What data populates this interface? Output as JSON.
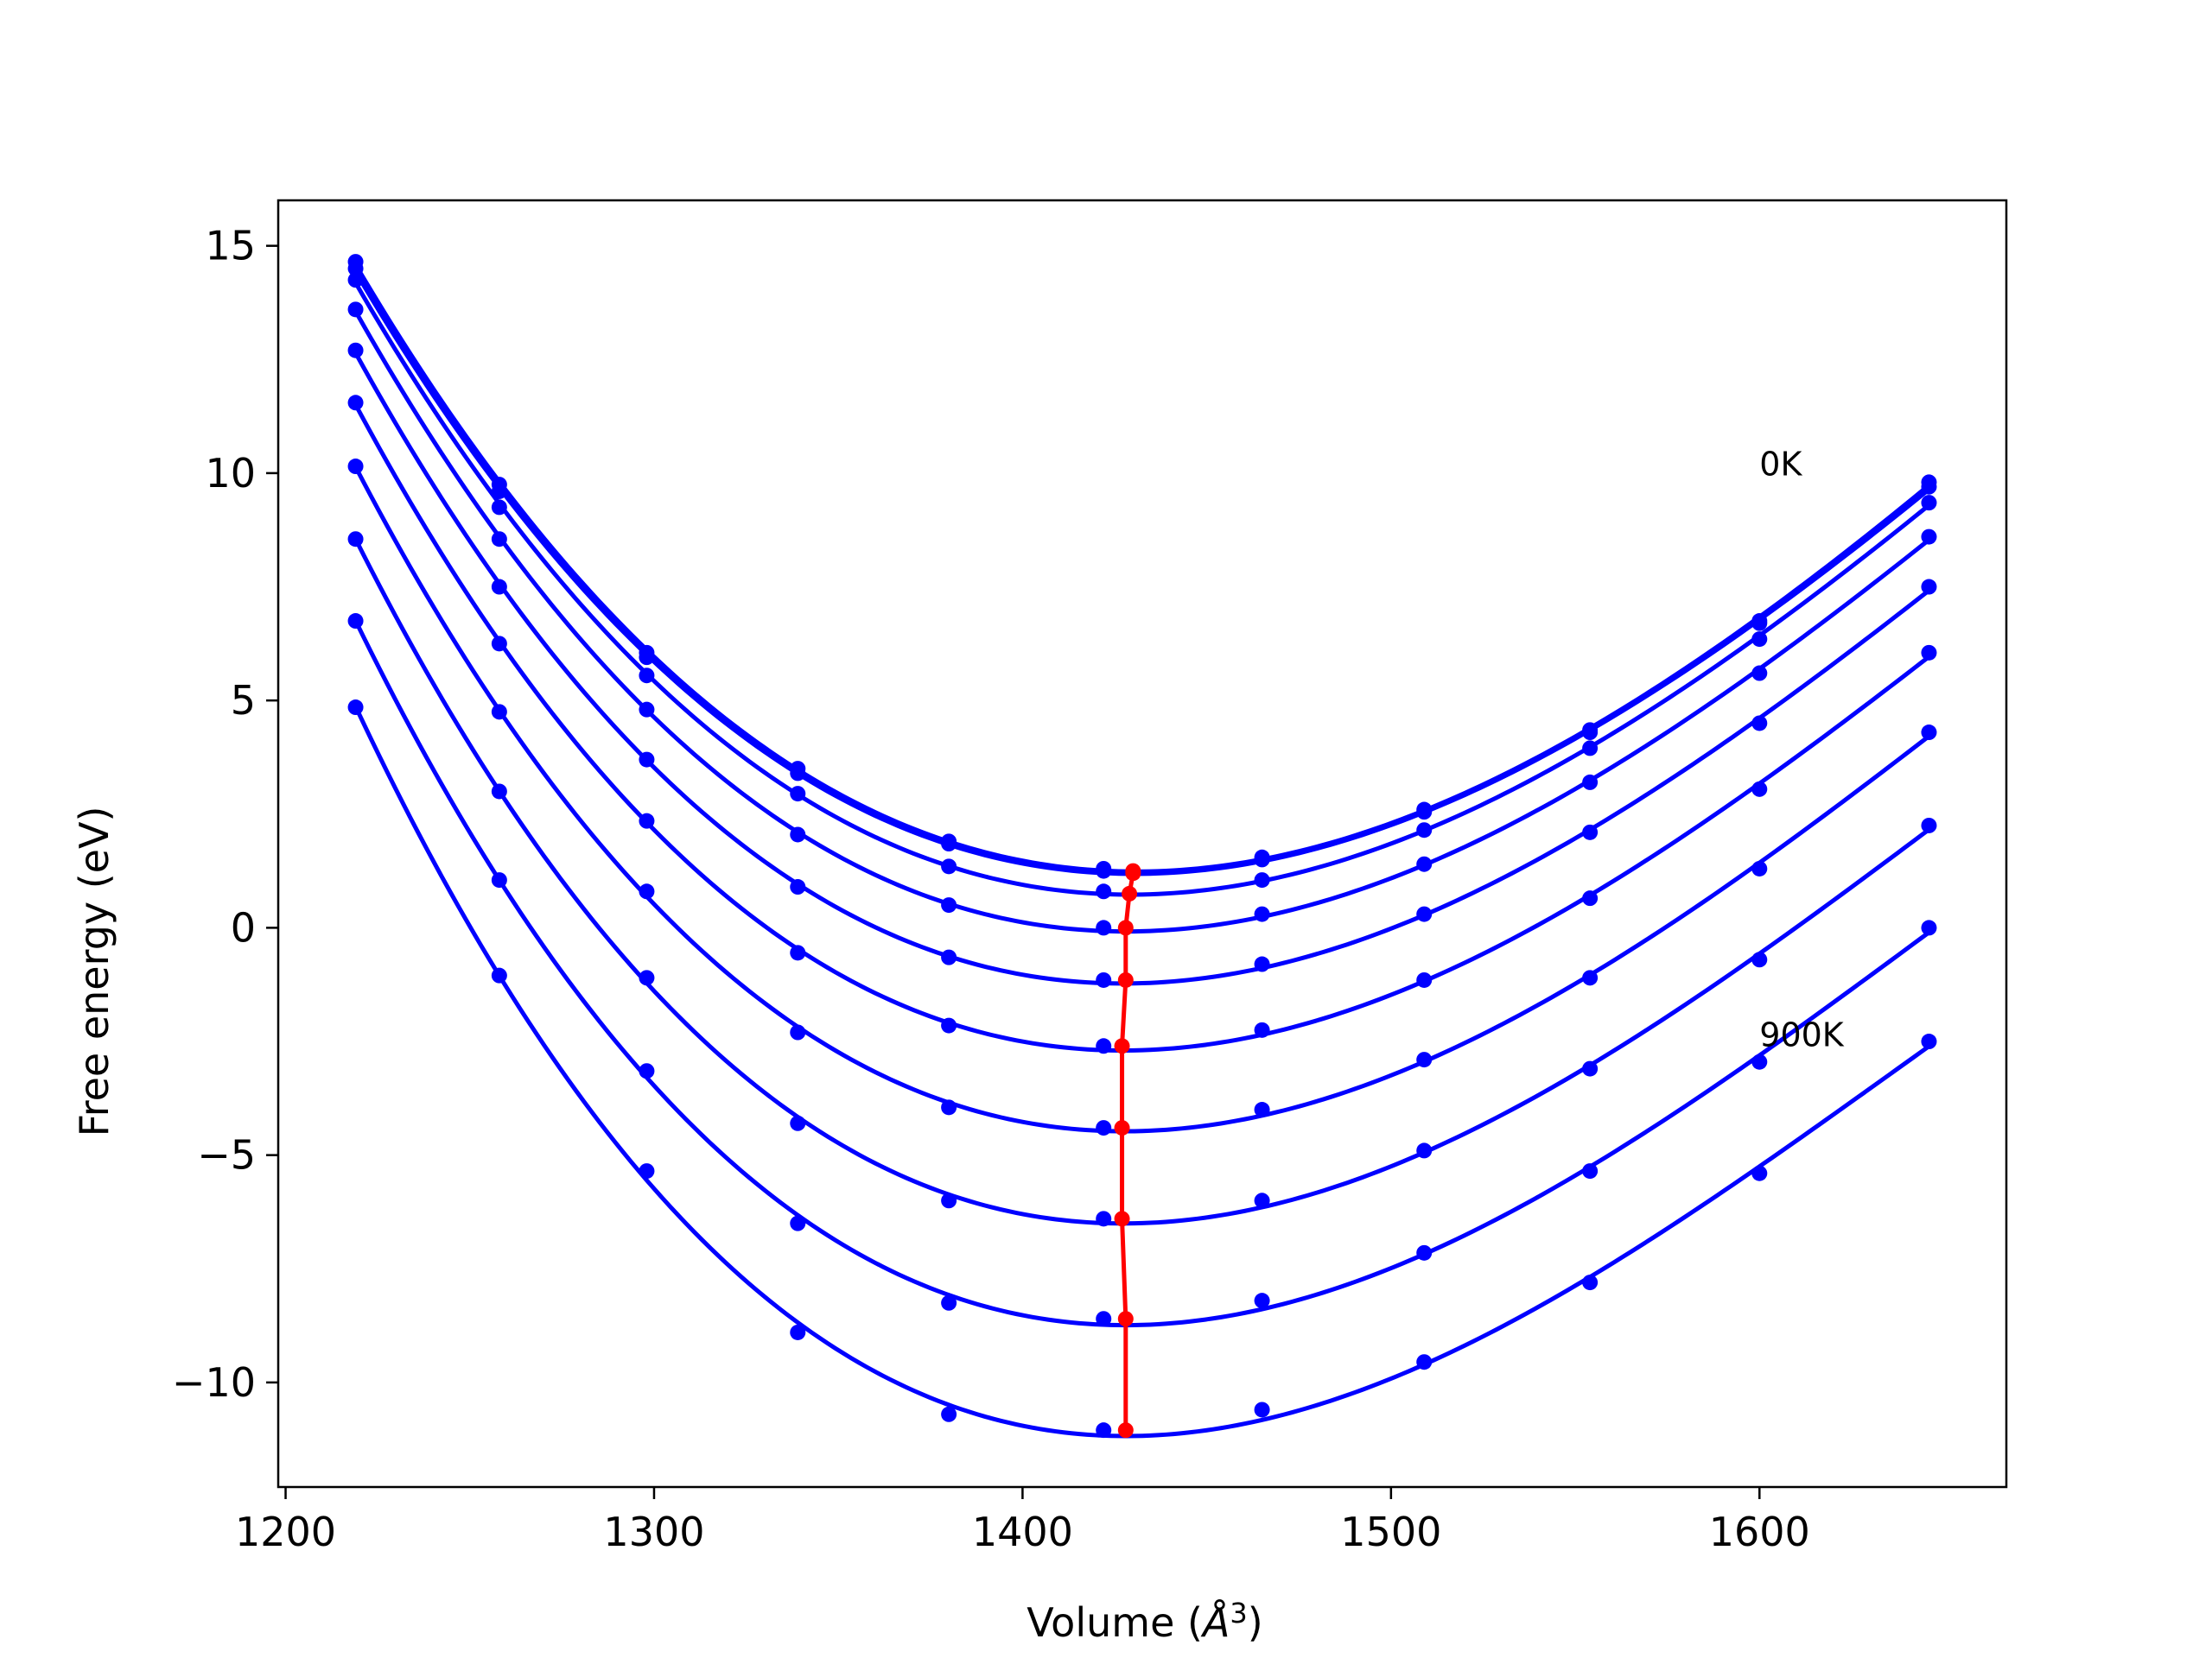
{
  "chart_data": {
    "type": "line",
    "title": "",
    "xlabel_prefix": "Volume (",
    "xlabel_unit": "Å",
    "xlabel_exp": "3",
    "xlabel_suffix": ")",
    "ylabel": "Free energy (eV)",
    "xlim": [
      1198,
      1667
    ],
    "ylim": [
      -12.3,
      16.0
    ],
    "xticks": [
      1200,
      1300,
      1400,
      1500,
      1600
    ],
    "xtick_labels": [
      "1200",
      "1300",
      "1400",
      "1500",
      "1600"
    ],
    "yticks": [
      15,
      10,
      5,
      0,
      -5,
      -10
    ],
    "ytick_labels": [
      "15",
      "10",
      "5",
      "0",
      "−5",
      "−10"
    ],
    "grid": false,
    "colors": {
      "curves": "#0000ff",
      "minima": "#ff0000",
      "frame": "#000000"
    },
    "volumes": [
      1219,
      1258,
      1298,
      1339,
      1380,
      1422,
      1465,
      1509,
      1554,
      1600,
      1646
    ],
    "annotations": [
      {
        "text": "0K",
        "x": 1600,
        "y": 9.95
      },
      {
        "text": "900K",
        "x": 1600,
        "y": -2.6
      }
    ],
    "series": [
      {
        "values": [
          14.65,
          9.75,
          6.05,
          3.5,
          1.9,
          1.3,
          1.55,
          2.6,
          4.35,
          6.75,
          9.8
        ],
        "min": {
          "x": 1430,
          "y": 1.25
        }
      },
      {
        "values": [
          14.5,
          9.6,
          5.95,
          3.4,
          1.85,
          1.25,
          1.5,
          2.55,
          4.3,
          6.7,
          9.7
        ],
        "min": {
          "x": 1430,
          "y": 1.2
        }
      },
      {
        "values": [
          14.25,
          9.25,
          5.55,
          2.95,
          1.35,
          0.8,
          1.05,
          2.15,
          3.95,
          6.35,
          9.35
        ],
        "min": {
          "x": 1429,
          "y": 0.75
        }
      },
      {
        "values": [
          13.6,
          8.55,
          4.8,
          2.05,
          0.5,
          0.0,
          0.3,
          1.4,
          3.2,
          5.6,
          8.6
        ],
        "min": {
          "x": 1428,
          "y": 0.0
        }
      },
      {
        "values": [
          12.7,
          7.5,
          3.7,
          0.9,
          -0.65,
          -1.15,
          -0.8,
          0.3,
          2.1,
          4.5,
          7.5
        ],
        "min": {
          "x": 1428,
          "y": -1.15
        }
      },
      {
        "values": [
          11.55,
          6.25,
          2.35,
          -0.55,
          -2.15,
          -2.6,
          -2.25,
          -1.15,
          0.65,
          3.05,
          6.05
        ],
        "min": {
          "x": 1427,
          "y": -2.6
        }
      },
      {
        "values": [
          10.15,
          4.75,
          0.8,
          -2.3,
          -3.95,
          -4.4,
          -4.0,
          -2.9,
          -1.1,
          1.3,
          4.3
        ],
        "min": {
          "x": 1427,
          "y": -4.4
        }
      },
      {
        "values": [
          8.55,
          3.0,
          -1.1,
          -4.3,
          -6.0,
          -6.4,
          -6.0,
          -4.9,
          -3.1,
          -0.7,
          2.25
        ],
        "min": {
          "x": 1427,
          "y": -6.4
        }
      },
      {
        "values": [
          6.75,
          1.05,
          -3.15,
          -6.5,
          -8.25,
          -8.6,
          -8.2,
          -7.15,
          -5.35,
          -2.95,
          0.0
        ],
        "min": {
          "x": 1428,
          "y": -8.6
        }
      },
      {
        "values": [
          4.85,
          -1.05,
          -5.35,
          -8.9,
          -10.7,
          -11.05,
          -10.6,
          -9.55,
          -7.8,
          -5.4,
          -2.5
        ],
        "min": {
          "x": 1428,
          "y": -11.05
        }
      }
    ]
  }
}
